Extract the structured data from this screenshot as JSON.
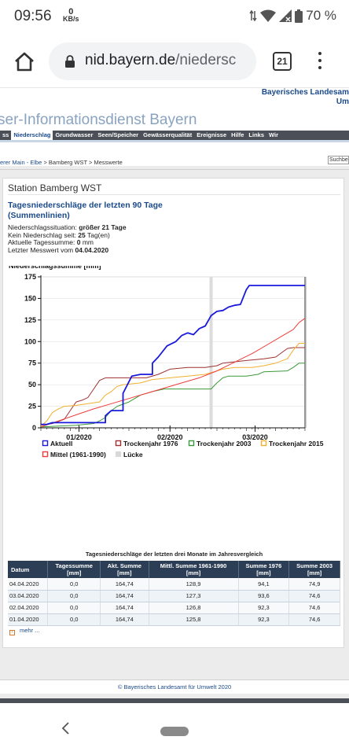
{
  "status_bar": {
    "time": "09:56",
    "net_speed_value": "0",
    "net_speed_unit": "KB/s",
    "battery": "70 %"
  },
  "browser": {
    "url_host": "nid.bayern.de",
    "url_path": "/niedersc",
    "tab_count": "21"
  },
  "site": {
    "agency_line1": "Bayerisches Landesam",
    "agency_line2": "Um",
    "title": "ser-Informationsdienst Bayern",
    "nav": [
      "ss",
      "Niederschlag",
      "Grundwasser",
      "Seen/Speicher",
      "Gewässerqualität",
      "Ereignisse",
      "Hilfe",
      "Links",
      "Wir"
    ],
    "nav_active": "Niederschlag",
    "breadcrumb_link": "erer Main - Elbe",
    "breadcrumb_rest": " > Bamberg WST > Messwerte",
    "search_label": "Suchbe"
  },
  "station": {
    "name": "Station Bamberg WST",
    "subtitle_line1": "Tagesniederschläge der letzten 90 Tage",
    "subtitle_line2": "(Summenlinien)",
    "info": [
      {
        "label": "Niederschlagssituation: ",
        "value": "größer 21 Tage"
      },
      {
        "label": "Kein Niederschlag seit: ",
        "value": "25",
        "suffix": " Tag(en)"
      },
      {
        "label": "Aktuelle Tagessumme: ",
        "value": "0",
        "suffix": " mm"
      },
      {
        "label": "Letzter Messwert vom ",
        "value": "04.04.2020"
      }
    ]
  },
  "chart_data": {
    "type": "line",
    "ylabel": "Niederschlagssumme [mm]",
    "ylim": [
      0,
      175
    ],
    "xlim": [
      0,
      90
    ],
    "y_ticks": [
      0,
      25,
      50,
      75,
      100,
      125,
      150,
      175
    ],
    "x_ticks": [
      {
        "label": "01/2020",
        "x": 13
      },
      {
        "label": "02/2020",
        "x": 44
      },
      {
        "label": "03/2020",
        "x": 73
      }
    ],
    "gap_x": 58,
    "grid": true,
    "legend_position": "bottom",
    "series": [
      {
        "name": "Aktuell",
        "color": "#1a1adc",
        "points": [
          [
            0,
            4
          ],
          [
            2,
            4
          ],
          [
            4,
            6
          ],
          [
            10,
            6
          ],
          [
            16,
            6
          ],
          [
            22,
            6
          ],
          [
            22,
            14
          ],
          [
            24,
            20
          ],
          [
            28,
            20
          ],
          [
            28,
            40
          ],
          [
            31,
            60
          ],
          [
            34,
            62
          ],
          [
            38,
            62
          ],
          [
            38,
            75
          ],
          [
            40,
            82
          ],
          [
            43,
            95
          ],
          [
            46,
            100
          ],
          [
            48,
            107
          ],
          [
            50,
            110
          ],
          [
            52,
            108
          ],
          [
            54,
            115
          ],
          [
            56,
            118
          ],
          [
            58,
            130
          ],
          [
            60,
            135
          ],
          [
            62,
            136
          ],
          [
            64,
            140
          ],
          [
            66,
            142
          ],
          [
            68,
            143
          ],
          [
            70,
            160
          ],
          [
            71,
            165
          ],
          [
            78,
            165
          ],
          [
            86,
            165
          ],
          [
            90,
            165
          ]
        ]
      },
      {
        "name": "Trockenjahr 1976",
        "color": "#a03030",
        "points": [
          [
            0,
            3
          ],
          [
            4,
            5
          ],
          [
            8,
            10
          ],
          [
            10,
            20
          ],
          [
            12,
            30
          ],
          [
            14,
            32
          ],
          [
            16,
            35
          ],
          [
            18,
            45
          ],
          [
            20,
            55
          ],
          [
            22,
            58
          ],
          [
            26,
            58
          ],
          [
            36,
            58
          ],
          [
            40,
            62
          ],
          [
            44,
            68
          ],
          [
            50,
            70
          ],
          [
            56,
            70
          ],
          [
            60,
            72
          ],
          [
            62,
            75
          ],
          [
            70,
            78
          ],
          [
            76,
            80
          ],
          [
            80,
            82
          ],
          [
            84,
            92
          ],
          [
            86,
            93
          ],
          [
            90,
            93
          ]
        ]
      },
      {
        "name": "Trockenjahr 2003",
        "color": "#3a9a3a",
        "points": [
          [
            0,
            1
          ],
          [
            6,
            2
          ],
          [
            12,
            3
          ],
          [
            18,
            5
          ],
          [
            20,
            8
          ],
          [
            22,
            12
          ],
          [
            24,
            20
          ],
          [
            26,
            25
          ],
          [
            30,
            30
          ],
          [
            34,
            38
          ],
          [
            38,
            42
          ],
          [
            42,
            45
          ],
          [
            46,
            45
          ],
          [
            56,
            45
          ],
          [
            58,
            45
          ],
          [
            60,
            52
          ],
          [
            62,
            58
          ],
          [
            64,
            60
          ],
          [
            70,
            60
          ],
          [
            74,
            62
          ],
          [
            76,
            65
          ],
          [
            84,
            66
          ],
          [
            86,
            70
          ],
          [
            88,
            75
          ],
          [
            90,
            75
          ]
        ]
      },
      {
        "name": "Trockenjahr 2015",
        "color": "#f0b030",
        "points": [
          [
            0,
            2
          ],
          [
            2,
            8
          ],
          [
            4,
            18
          ],
          [
            6,
            22
          ],
          [
            8,
            25
          ],
          [
            12,
            26
          ],
          [
            16,
            28
          ],
          [
            20,
            30
          ],
          [
            22,
            38
          ],
          [
            24,
            42
          ],
          [
            26,
            48
          ],
          [
            28,
            50
          ],
          [
            34,
            52
          ],
          [
            38,
            56
          ],
          [
            44,
            58
          ],
          [
            50,
            60
          ],
          [
            56,
            62
          ],
          [
            58,
            64
          ],
          [
            62,
            68
          ],
          [
            66,
            70
          ],
          [
            72,
            70
          ],
          [
            76,
            72
          ],
          [
            80,
            75
          ],
          [
            84,
            80
          ],
          [
            86,
            90
          ],
          [
            88,
            98
          ],
          [
            90,
            98
          ]
        ]
      },
      {
        "name": "Mittel (1961-1990)",
        "color": "#f03c3c",
        "points": [
          [
            0,
            1
          ],
          [
            6,
            8
          ],
          [
            12,
            15
          ],
          [
            18,
            22
          ],
          [
            24,
            28
          ],
          [
            30,
            34
          ],
          [
            36,
            40
          ],
          [
            42,
            46
          ],
          [
            48,
            52
          ],
          [
            54,
            58
          ],
          [
            60,
            66
          ],
          [
            66,
            76
          ],
          [
            72,
            86
          ],
          [
            78,
            98
          ],
          [
            82,
            106
          ],
          [
            86,
            114
          ],
          [
            88,
            122
          ],
          [
            90,
            127
          ]
        ]
      }
    ],
    "legend": [
      {
        "label": "Aktuell",
        "color": "#1a1adc",
        "style": "box"
      },
      {
        "label": "Trockenjahr 1976",
        "color": "#a03030",
        "style": "box"
      },
      {
        "label": "Trockenjahr 2003",
        "color": "#3a9a3a",
        "style": "box"
      },
      {
        "label": "Trockenjahr 2015",
        "color": "#f0b030",
        "style": "box"
      },
      {
        "label": "Mittel (1961-1990)",
        "color": "#f03c3c",
        "style": "box"
      },
      {
        "label": "Lücke",
        "color": "#d8d8d8",
        "style": "fill"
      }
    ]
  },
  "table": {
    "title": "Tagesniederschläge der letzten drei Monate im Jahresvergleich",
    "headers": [
      [
        "Datum",
        ""
      ],
      [
        "Tagessumme",
        "[mm]"
      ],
      [
        "Akt. Summe",
        "[mm]"
      ],
      [
        "Mittl. Summe 1961-1990",
        "[mm]"
      ],
      [
        "Summe 1976",
        "[mm]"
      ],
      [
        "Summe 2003",
        "[mm]"
      ]
    ],
    "rows": [
      [
        "04.04.2020",
        "0,0",
        "164,74",
        "128,9",
        "94,1",
        "74,9"
      ],
      [
        "03.04.2020",
        "0,0",
        "164,74",
        "127,3",
        "93,6",
        "74,6"
      ],
      [
        "02.04.2020",
        "0,0",
        "164,74",
        "126,8",
        "92,3",
        "74,6"
      ],
      [
        "01.04.2020",
        "0,0",
        "164,74",
        "125,8",
        "92,3",
        "74,6"
      ]
    ],
    "more_label": "mehr ..."
  },
  "footer": {
    "copyright": "© Bayerisches Landesamt für Umwelt 2020"
  }
}
